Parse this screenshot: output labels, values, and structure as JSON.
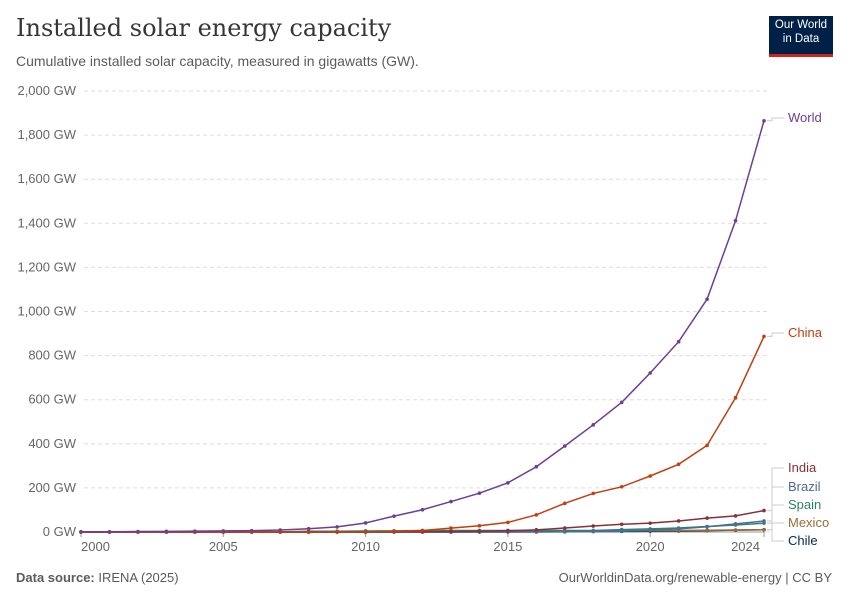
{
  "header": {
    "title": "Installed solar energy capacity",
    "subtitle": "Cumulative installed solar capacity, measured in gigawatts (GW).",
    "logo_line1": "Our World",
    "logo_line2": "in Data"
  },
  "footer": {
    "source_label": "Data source:",
    "source": "IRENA (2025)",
    "url": "OurWorldinData.org/renewable-energy | CC BY"
  },
  "chart_data": {
    "type": "line",
    "title": "Installed solar energy capacity",
    "subtitle": "Cumulative installed solar capacity, measured in gigawatts (GW).",
    "ylim": [
      0,
      2000
    ],
    "yticks": [
      0,
      200,
      400,
      600,
      800,
      1000,
      1200,
      1400,
      1600,
      1800,
      2000
    ],
    "ytick_labels": [
      "0 GW",
      "200 GW",
      "400 GW",
      "600 GW",
      "800 GW",
      "1,000 GW",
      "1,200 GW",
      "1,400 GW",
      "1,600 GW",
      "1,800 GW",
      "2,000 GW"
    ],
    "xlim": [
      2000,
      2024
    ],
    "xticks": [
      2000,
      2005,
      2010,
      2015,
      2020,
      2024
    ],
    "grid": "horizontal dashed",
    "legend": "right, line-end labels",
    "x": [
      2000,
      2001,
      2002,
      2003,
      2004,
      2005,
      2006,
      2007,
      2008,
      2009,
      2010,
      2011,
      2012,
      2013,
      2014,
      2015,
      2016,
      2017,
      2018,
      2019,
      2020,
      2021,
      2022,
      2023,
      2024
    ],
    "series": [
      {
        "name": "World",
        "color": "#6d3e91",
        "values": [
          1,
          1,
          2,
          3,
          4,
          5,
          6,
          9,
          15,
          23,
          41,
          72,
          101,
          138,
          176,
          223,
          296,
          390,
          486,
          588,
          721,
          863,
          1056,
          1412,
          1865
        ]
      },
      {
        "name": "China",
        "color": "#c13e0e",
        "values": [
          0,
          0,
          0,
          0,
          0,
          0,
          0,
          0,
          0,
          0.4,
          1,
          3,
          6.7,
          17.7,
          28.4,
          43.5,
          77.8,
          130,
          175,
          205,
          254,
          307,
          393,
          609,
          887
        ]
      },
      {
        "name": "India",
        "color": "#883039",
        "values": [
          0,
          0,
          0,
          0,
          0,
          0,
          0,
          0,
          0,
          0,
          0.1,
          0.6,
          1,
          1.8,
          3.4,
          5.4,
          9.7,
          18,
          27,
          35,
          40,
          50,
          63,
          73,
          97
        ]
      },
      {
        "name": "Brazil",
        "color": "#4c6a9c",
        "values": [
          0,
          0,
          0,
          0,
          0,
          0,
          0,
          0,
          0,
          0,
          0,
          0,
          0,
          0,
          0,
          0,
          0.1,
          1,
          2.4,
          4.6,
          7.9,
          14,
          24,
          37,
          50
        ]
      },
      {
        "name": "Spain",
        "color": "#2c8465",
        "values": [
          0,
          0,
          0,
          0,
          0,
          0,
          0.1,
          0.7,
          3.4,
          3.6,
          4.7,
          5.3,
          6.6,
          7,
          7,
          7,
          7,
          7,
          7,
          11,
          14,
          18,
          25,
          32,
          40
        ]
      },
      {
        "name": "Mexico",
        "color": "#996d39",
        "values": [
          0,
          0,
          0,
          0,
          0,
          0,
          0,
          0,
          0,
          0,
          0,
          0,
          0,
          0,
          0.1,
          0.2,
          0.4,
          0.7,
          2.6,
          4.4,
          5.6,
          7,
          8,
          9,
          10
        ]
      },
      {
        "name": "Chile",
        "color": "#00295b",
        "values": [
          0,
          0,
          0,
          0,
          0,
          0,
          0,
          0,
          0,
          0,
          0,
          0,
          0,
          0,
          0.4,
          0.6,
          1.1,
          1.8,
          2.4,
          2.9,
          3.2,
          4.4,
          6.5,
          8.4,
          10.5
        ]
      }
    ]
  }
}
